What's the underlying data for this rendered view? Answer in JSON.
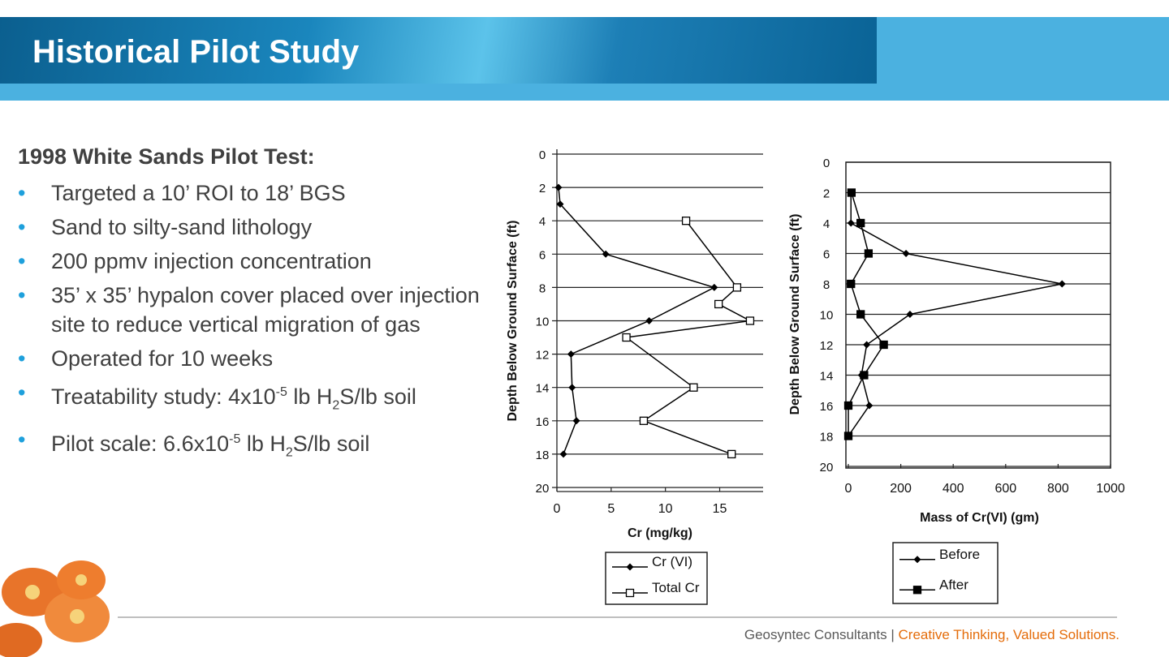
{
  "header": {
    "title": "Historical Pilot Study"
  },
  "body": {
    "heading": "1998 White Sands Pilot Test:",
    "bullets": [
      [
        "Targeted a 10’ ROI to 18’ BGS"
      ],
      [
        "Sand to silty-sand lithology"
      ],
      [
        "200 ppmv injection concentration"
      ],
      [
        "35’ x 35’ hypalon cover placed over injection site to reduce vertical migration of gas"
      ],
      [
        "Operated for 10 weeks"
      ],
      [
        "Treatability study: 4x10",
        "-5",
        " lb H",
        "2",
        "S/lb soil"
      ],
      [
        "Pilot scale: 6.6x10",
        "-5",
        " lb H",
        "2",
        "S/lb soil"
      ]
    ]
  },
  "footer": {
    "company": "Geosyntec Consultants |",
    "tagline": "Creative Thinking, Valued Solutions."
  },
  "chart_data": [
    {
      "type": "line",
      "x_label": "Cr (mg/kg)",
      "y_label": "Depth Below Ground Surface (ft)",
      "xlim": [
        0,
        19
      ],
      "xticks": [
        0,
        5,
        10,
        15
      ],
      "ylim": [
        20,
        0
      ],
      "yticks": [
        0,
        2,
        4,
        6,
        8,
        10,
        12,
        14,
        16,
        18,
        20
      ],
      "grid": true,
      "series": [
        {
          "name": "Cr (VI)",
          "color": "#000000",
          "marker": "diamond",
          "x": [
            0.15,
            0.3,
            4.5,
            14.5,
            8.5,
            1.3,
            1.4,
            1.8,
            0.6
          ],
          "values": [
            2,
            3,
            6,
            8,
            10,
            12,
            14,
            16,
            18
          ]
        },
        {
          "name": "Total Cr",
          "color": "#000000",
          "marker": "open-square",
          "x": [
            11.9,
            16.6,
            14.9,
            17.8,
            6.4,
            12.6,
            8.0,
            16.1
          ],
          "values": [
            4,
            8,
            9,
            10,
            11,
            14,
            16,
            18
          ]
        }
      ]
    },
    {
      "type": "line",
      "x_label": "Mass of Cr(VI) (gm)",
      "y_label": "Depth Below Ground Surface (ft)",
      "xlim": [
        0,
        1000
      ],
      "xticks": [
        0,
        200,
        400,
        600,
        800,
        1000
      ],
      "ylim": [
        20,
        0
      ],
      "yticks": [
        0,
        2,
        4,
        6,
        8,
        10,
        12,
        14,
        16,
        18,
        20
      ],
      "grid": true,
      "series": [
        {
          "name": "Before",
          "color": "#000000",
          "marker": "diamond",
          "x": [
            10,
            10,
            220,
            815,
            235,
            70,
            50,
            80,
            0
          ],
          "values": [
            2,
            4,
            6,
            8,
            10,
            12,
            14,
            16,
            18
          ]
        },
        {
          "name": "After",
          "color": "#000000",
          "marker": "square",
          "x": [
            12,
            47,
            77,
            10,
            47,
            135,
            60,
            0,
            0
          ],
          "values": [
            2,
            4,
            6,
            8,
            10,
            12,
            14,
            16,
            18
          ]
        }
      ]
    }
  ]
}
